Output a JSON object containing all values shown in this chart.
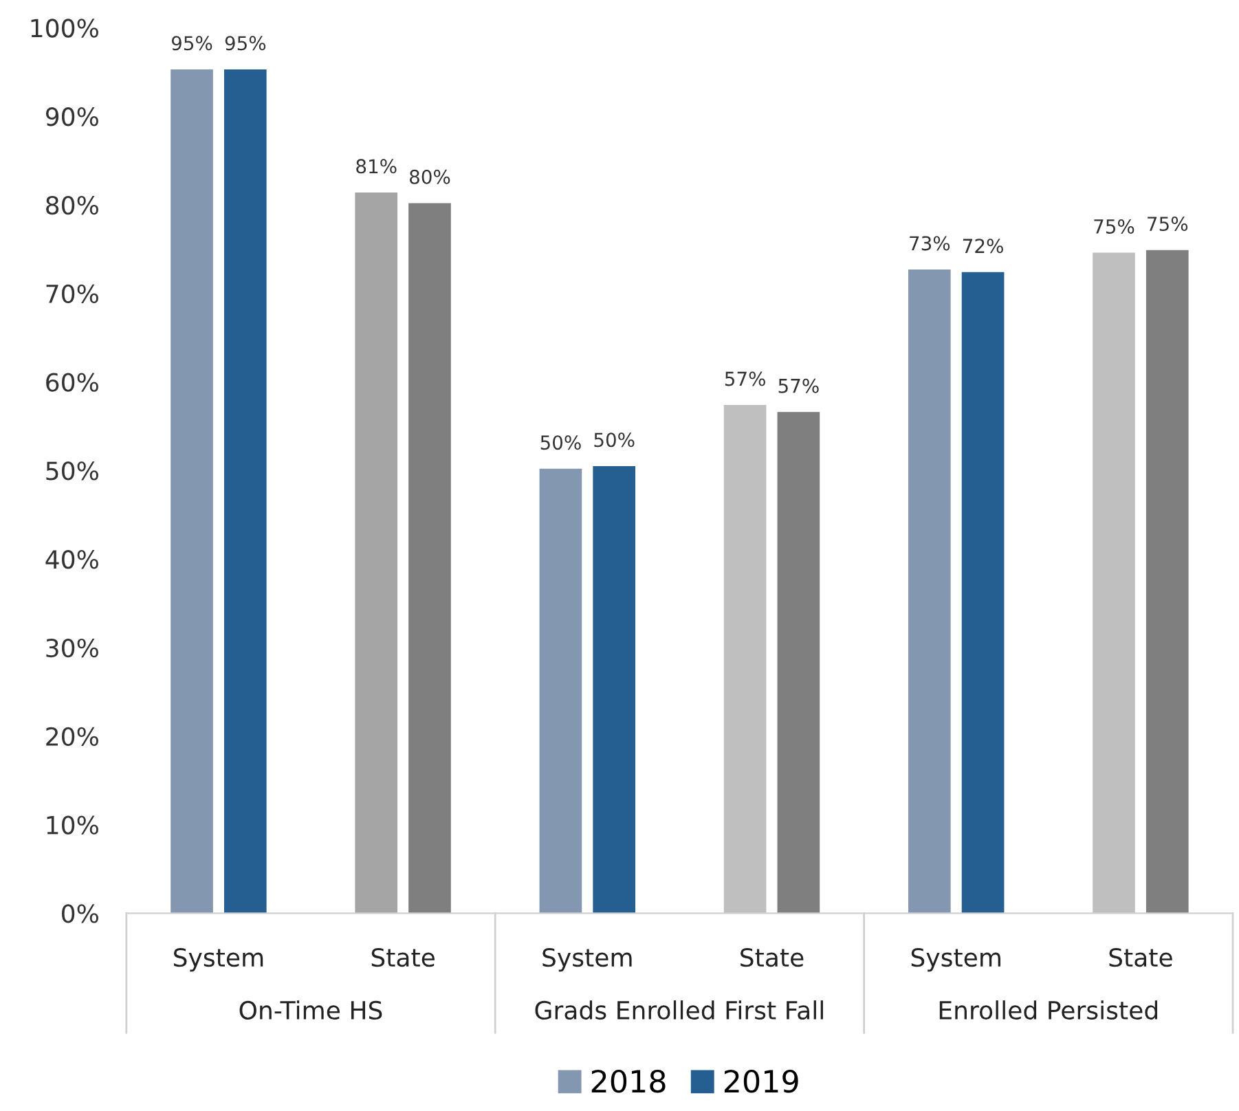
{
  "chart_data": {
    "type": "bar",
    "categories": [
      "System",
      "State",
      "System",
      "State",
      "System",
      "State"
    ],
    "series": [
      {
        "name": "2018",
        "color": "#8497b0",
        "colors": [
          "#8497b0",
          "#a5a5a5",
          "#8497b0",
          "#bfbfbf",
          "#8497b0",
          "#bfbfbf"
        ],
        "values": [
          95.3,
          81.4,
          50.2,
          57.4,
          72.7,
          74.6
        ],
        "value_labels": [
          "95%",
          "81%",
          "50%",
          "57%",
          "73%",
          "75%"
        ]
      },
      {
        "name": "2019",
        "color": "#255e91",
        "colors": [
          "#255e91",
          "#7f7f7f",
          "#255e91",
          "#7f7f7f",
          "#255e91",
          "#7f7f7f"
        ],
        "values": [
          95.3,
          80.2,
          50.5,
          56.6,
          72.4,
          74.9
        ],
        "value_labels": [
          "95%",
          "80%",
          "50%",
          "57%",
          "72%",
          "75%"
        ]
      }
    ],
    "annotations": [
      "On-Time HS",
      "Grads Enrolled First Fall",
      "Enrolled Persisted"
    ],
    "ylim": [
      0,
      100
    ],
    "yticks": [
      {
        "value": 0,
        "label": "0%"
      },
      {
        "value": 10,
        "label": "10%"
      },
      {
        "value": 20,
        "label": "20%"
      },
      {
        "value": 30,
        "label": "30%"
      },
      {
        "value": 40,
        "label": "40%"
      },
      {
        "value": 50,
        "label": "50%"
      },
      {
        "value": 60,
        "label": "60%"
      },
      {
        "value": 70,
        "label": "70%"
      },
      {
        "value": 80,
        "label": "80%"
      },
      {
        "value": 90,
        "label": "90%"
      },
      {
        "value": 100,
        "label": "100%"
      }
    ],
    "grid": false,
    "legend": "bottom"
  }
}
